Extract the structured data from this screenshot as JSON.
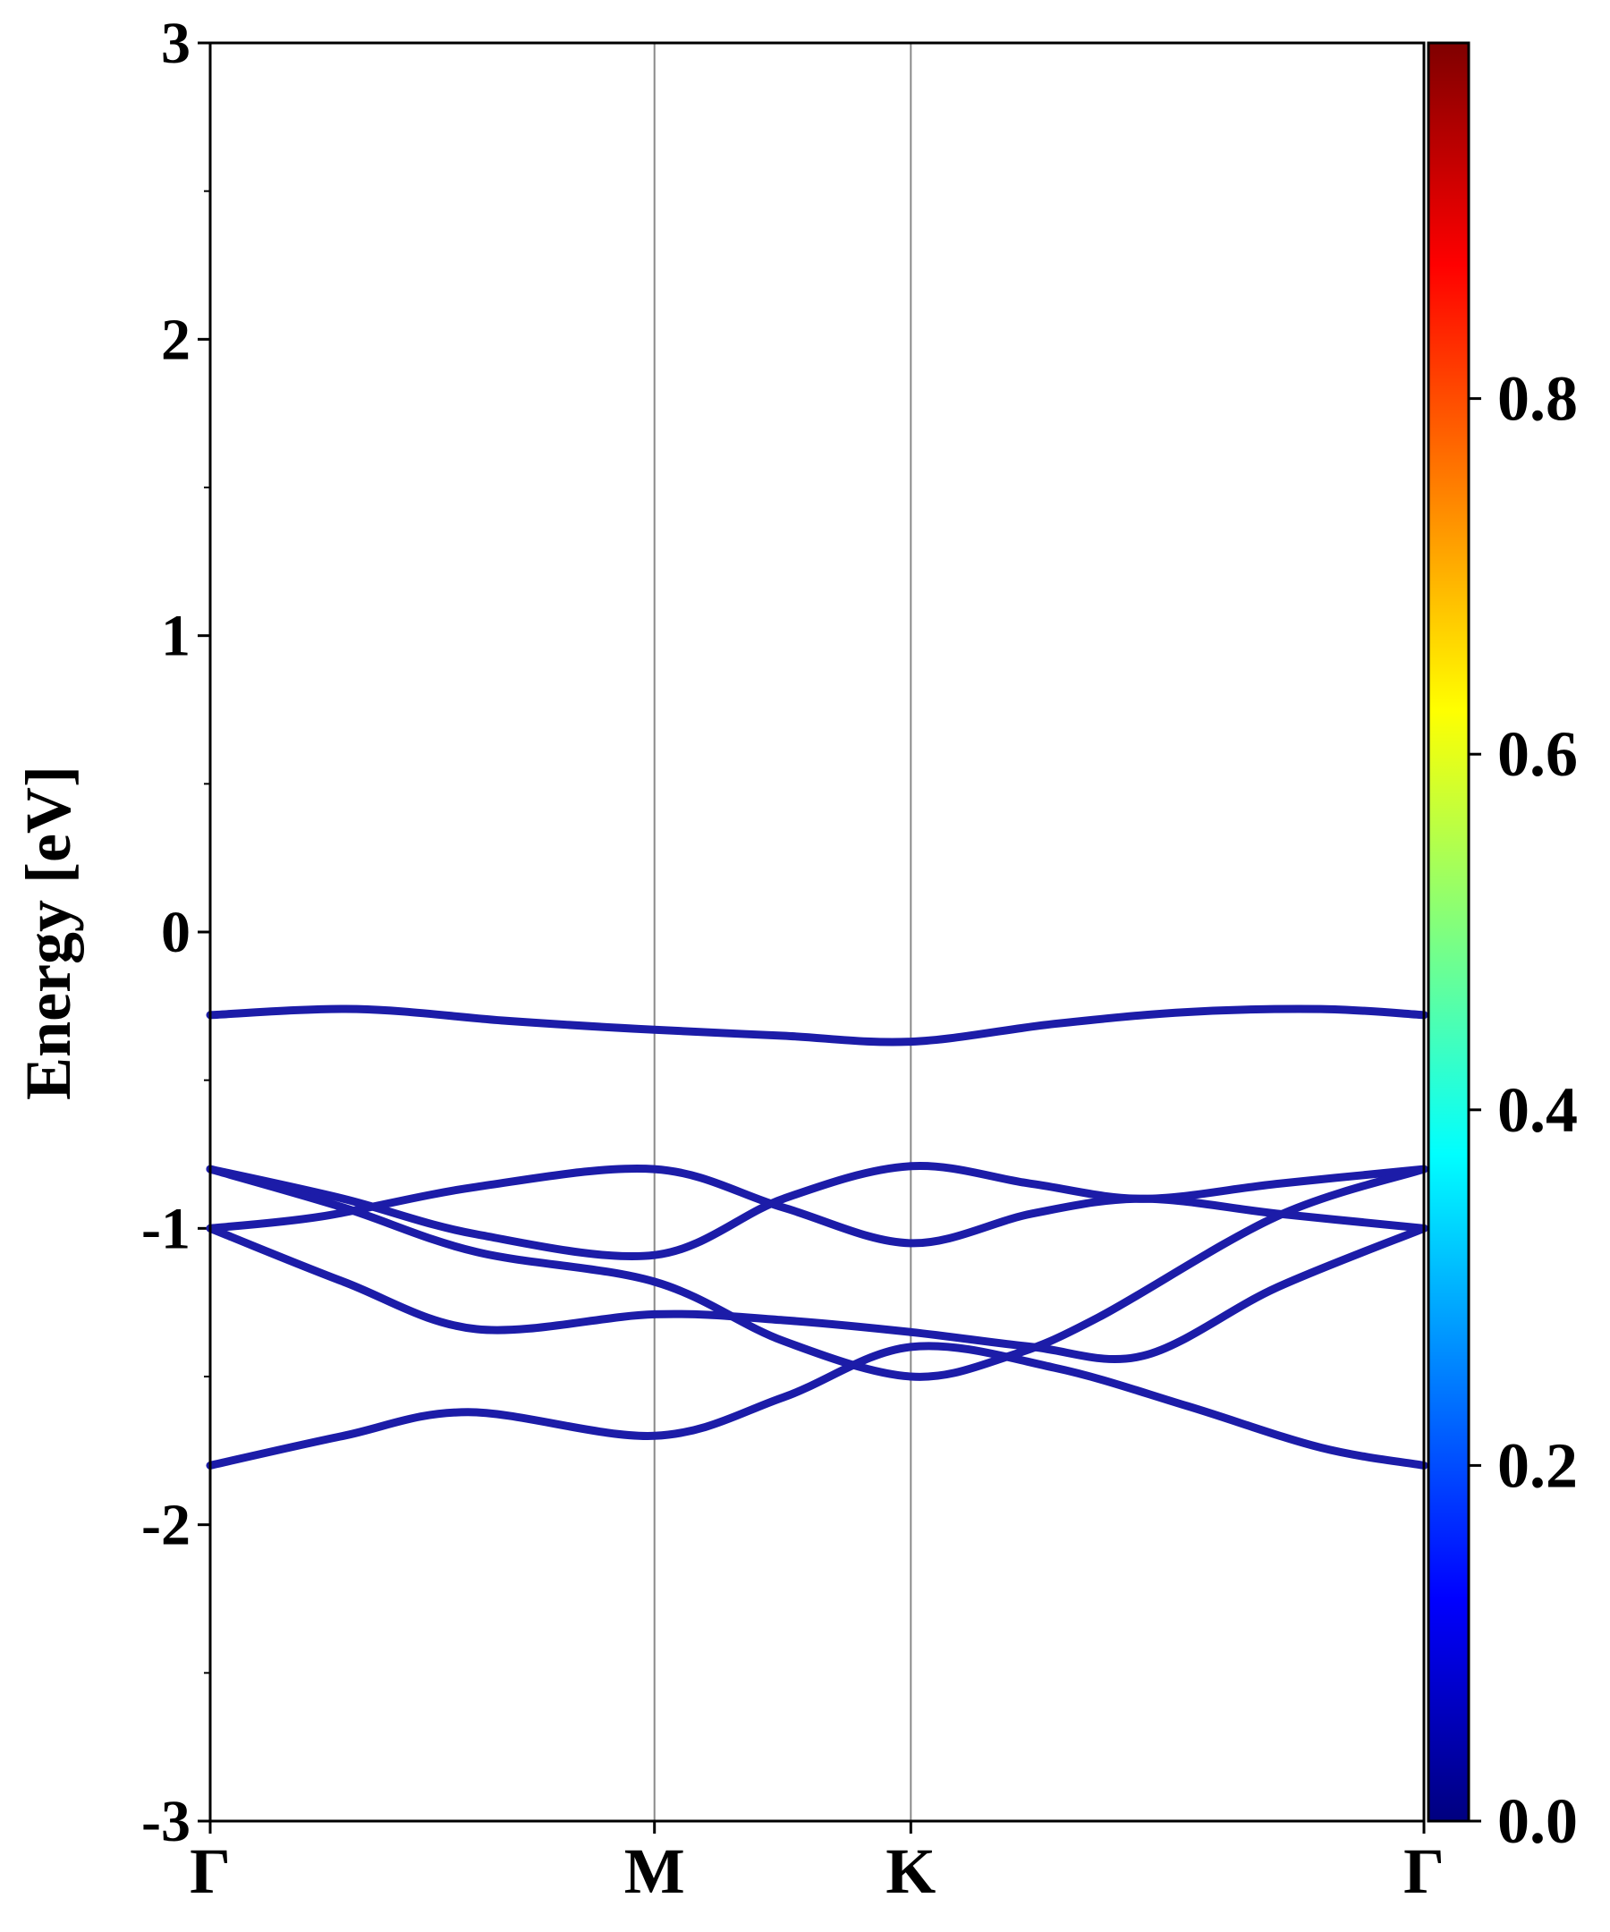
{
  "chart_data": {
    "type": "line",
    "title": "",
    "xlabel": "",
    "ylabel": "Energy [eV]",
    "ylim": [
      -3,
      3
    ],
    "y_ticks": [
      "-3",
      "-2",
      "-1",
      "0",
      "1",
      "2",
      "3"
    ],
    "x_ticks": [
      {
        "label": "Γ",
        "x": 0
      },
      {
        "label": "M",
        "x": 1
      },
      {
        "label": "K",
        "x": 1.577
      },
      {
        "label": "Γ",
        "x": 2.732
      }
    ],
    "xlim": [
      0,
      2.732
    ],
    "grid": false,
    "legend": "none",
    "line_color": "#1c1ca8",
    "series": [
      {
        "x": [
          0,
          0.33,
          0.67,
          1,
          1.29,
          1.577,
          1.9,
          2.2,
          2.5,
          2.732
        ],
        "y": [
          -0.28,
          -0.26,
          -0.3,
          -0.33,
          -0.35,
          -0.37,
          -0.31,
          -0.27,
          -0.26,
          -0.28
        ]
      },
      {
        "x": [
          0,
          0.3,
          0.6,
          1,
          1.29,
          1.577,
          1.85,
          2.1,
          2.4,
          2.732
        ],
        "y": [
          -0.8,
          -0.9,
          -1.02,
          -1.09,
          -0.9,
          -0.79,
          -0.85,
          -0.9,
          -0.85,
          -0.8
        ]
      },
      {
        "x": [
          0,
          0.25,
          0.6,
          1,
          1.29,
          1.577,
          1.85,
          2.1,
          2.4,
          2.732
        ],
        "y": [
          -1.0,
          -0.96,
          -0.86,
          -0.8,
          -0.93,
          -1.05,
          -0.95,
          -0.9,
          -0.95,
          -1.0
        ]
      },
      {
        "x": [
          0,
          0.3,
          0.6,
          1,
          1.29,
          1.577,
          1.8,
          2.0,
          2.4,
          2.732
        ],
        "y": [
          -0.8,
          -0.93,
          -1.08,
          -1.18,
          -1.38,
          -1.5,
          -1.43,
          -1.3,
          -0.96,
          -0.8
        ]
      },
      {
        "x": [
          0,
          0.3,
          0.6,
          1,
          1.29,
          1.577,
          1.85,
          2.1,
          2.4,
          2.732
        ],
        "y": [
          -1.0,
          -1.18,
          -1.34,
          -1.29,
          -1.31,
          -1.35,
          -1.4,
          -1.43,
          -1.2,
          -1.0
        ]
      },
      {
        "x": [
          0,
          0.3,
          0.58,
          1,
          1.29,
          1.577,
          1.9,
          2.2,
          2.5,
          2.732
        ],
        "y": [
          -1.8,
          -1.7,
          -1.62,
          -1.7,
          -1.57,
          -1.4,
          -1.47,
          -1.6,
          -1.74,
          -1.8
        ]
      }
    ],
    "colorbar": {
      "ticks": [
        "0.0",
        "0.2",
        "0.4",
        "0.6",
        "0.8"
      ],
      "range": [
        0,
        1
      ],
      "colormap": [
        "#00007f",
        "#0000ff",
        "#007fff",
        "#00ffff",
        "#7fff7f",
        "#ffff00",
        "#ff7f00",
        "#ff0000",
        "#7f0000"
      ]
    }
  }
}
